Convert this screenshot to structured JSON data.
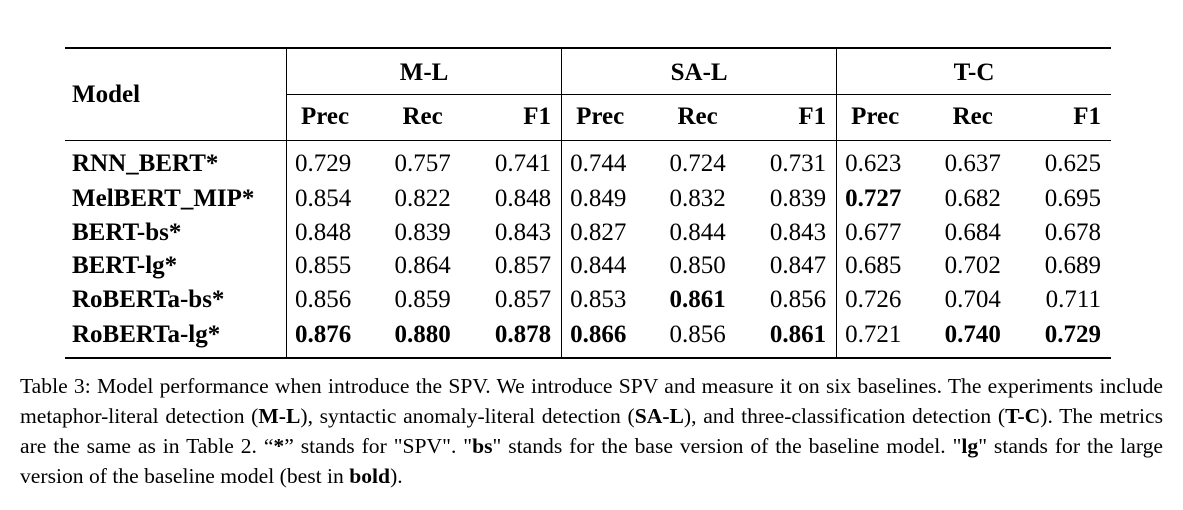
{
  "table": {
    "model_header": "Model",
    "groups": [
      "M-L",
      "SA-L",
      "T-C"
    ],
    "metrics": [
      "Prec",
      "Rec",
      "F1"
    ],
    "rows": [
      {
        "model": "RNN_BERT*",
        "values": [
          "0.729",
          "0.757",
          "0.741",
          "0.744",
          "0.724",
          "0.731",
          "0.623",
          "0.637",
          "0.625"
        ]
      },
      {
        "model": "MelBERT_MIP*",
        "values": [
          "0.854",
          "0.822",
          "0.848",
          "0.849",
          "0.832",
          "0.839",
          "0.727",
          "0.682",
          "0.695"
        ]
      },
      {
        "model": "BERT-bs*",
        "values": [
          "0.848",
          "0.839",
          "0.843",
          "0.827",
          "0.844",
          "0.843",
          "0.677",
          "0.684",
          "0.678"
        ]
      },
      {
        "model": "BERT-lg*",
        "values": [
          "0.855",
          "0.864",
          "0.857",
          "0.844",
          "0.850",
          "0.847",
          "0.685",
          "0.702",
          "0.689"
        ]
      },
      {
        "model": "RoBERTa-bs*",
        "values": [
          "0.856",
          "0.859",
          "0.857",
          "0.853",
          "0.861",
          "0.856",
          "0.726",
          "0.704",
          "0.711"
        ]
      },
      {
        "model": "RoBERTa-lg*",
        "values": [
          "0.876",
          "0.880",
          "0.878",
          "0.866",
          "0.856",
          "0.861",
          "0.721",
          "0.740",
          "0.729"
        ]
      }
    ],
    "bold_cells": [
      [
        1,
        6
      ],
      [
        4,
        4
      ],
      [
        5,
        0
      ],
      [
        5,
        1
      ],
      [
        5,
        2
      ],
      [
        5,
        3
      ],
      [
        5,
        5
      ],
      [
        5,
        7
      ],
      [
        5,
        8
      ]
    ]
  },
  "caption": {
    "s1": "Table 3: Model performance when introduce the SPV. We introduce SPV and measure it on six baselines. The experiments include metaphor-literal detection (",
    "b1": "M-L",
    "s2": "), syntactic anomaly-literal detection (",
    "b2": "SA-L",
    "s3": "), and three-classification detection (",
    "b3": "T-C",
    "s4": "). The metrics are the same as in Table 2. “",
    "b4": "*",
    "s5": "” stands for \"SPV\". \"",
    "b5": "bs",
    "s6": "\" stands for the base version of the baseline model. \"",
    "b6": "lg",
    "s7": "\" stands for the large version of the baseline model (best in ",
    "b7": "bold",
    "s8": ")."
  }
}
